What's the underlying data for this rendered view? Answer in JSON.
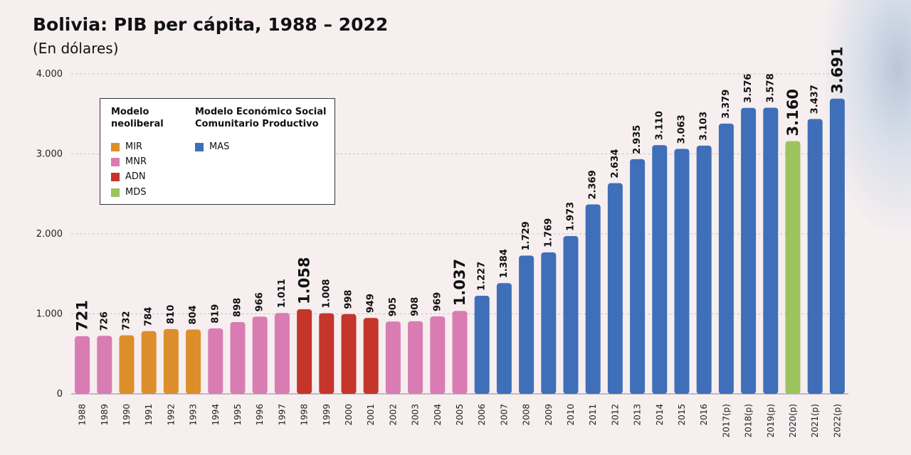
{
  "chart_data": {
    "type": "bar",
    "title": "Bolivia: PIB per cápita, 1988 – 2022",
    "subtitle": "(En dólares)",
    "categories": [
      "1988",
      "1989",
      "1990",
      "1991",
      "1992",
      "1993",
      "1994",
      "1995",
      "1996",
      "1997",
      "1998",
      "1999",
      "2000",
      "2001",
      "2002",
      "2003",
      "2004",
      "2005",
      "2006",
      "2007",
      "2008",
      "2009",
      "2010",
      "2011",
      "2012",
      "2013",
      "2014",
      "2015",
      "2016",
      "2017(p)",
      "2018(p)",
      "2019(p)",
      "2020(p)",
      "2021(p)",
      "2022(p)"
    ],
    "values": [
      721,
      726,
      732,
      784,
      810,
      804,
      819,
      898,
      966,
      1011,
      1058,
      1008,
      998,
      949,
      905,
      908,
      969,
      1037,
      1227,
      1384,
      1729,
      1769,
      1973,
      2369,
      2634,
      2935,
      3110,
      3063,
      3103,
      3379,
      3576,
      3578,
      3160,
      3437,
      3691
    ],
    "value_labels": [
      "721",
      "726",
      "732",
      "784",
      "810",
      "804",
      "819",
      "898",
      "966",
      "1.011",
      "1.058",
      "1.008",
      "998",
      "949",
      "905",
      "908",
      "969",
      "1.037",
      "1.227",
      "1.384",
      "1.729",
      "1.769",
      "1.973",
      "2.369",
      "2.634",
      "2.935",
      "3.110",
      "3.063",
      "3.103",
      "3.379",
      "3.576",
      "3.578",
      "3.160",
      "3.437",
      "3.691"
    ],
    "emphasized_labels": [
      "1988",
      "1998",
      "2005",
      "2020(p)",
      "2022(p)"
    ],
    "bar_groups": [
      "MNR",
      "MNR",
      "MIR",
      "MIR",
      "MIR",
      "MIR",
      "MNR",
      "MNR",
      "MNR",
      "MNR",
      "ADN",
      "ADN",
      "ADN",
      "ADN",
      "MNR",
      "MNR",
      "MNR",
      "MNR",
      "MAS",
      "MAS",
      "MAS",
      "MAS",
      "MAS",
      "MAS",
      "MAS",
      "MAS",
      "MAS",
      "MAS",
      "MAS",
      "MAS",
      "MAS",
      "MAS",
      "MDS",
      "MAS",
      "MAS"
    ],
    "group_colors": {
      "MIR": "#dc8e2a",
      "MNR": "#d97cb3",
      "ADN": "#c5352a",
      "MDS": "#9cc35c",
      "MAS": "#3f6fb8"
    },
    "yticks": [
      {
        "value": 0,
        "label": "0"
      },
      {
        "value": 1000,
        "label": "1.000"
      },
      {
        "value": 2000,
        "label": "2.000"
      },
      {
        "value": 3000,
        "label": "3.000"
      },
      {
        "value": 4000,
        "label": "4.000"
      }
    ],
    "ylim": [
      0,
      4000
    ],
    "xlabel": "",
    "ylabel": "",
    "grid": "horizontal dashed",
    "legend": {
      "placement": "top-left",
      "groups": [
        {
          "heading": "Modelo neoliberal",
          "heading_lines": [
            "Modelo",
            "neoliberal"
          ],
          "items": [
            {
              "name": "MIR",
              "color": "#dc8e2a"
            },
            {
              "name": "MNR",
              "color": "#d97cb3"
            },
            {
              "name": "ADN",
              "color": "#c5352a"
            },
            {
              "name": "MDS",
              "color": "#9cc35c"
            }
          ]
        },
        {
          "heading": "Modelo Económico Social Comunitario Productivo",
          "heading_lines": [
            "Modelo Económico Social",
            "Comunitario Productivo"
          ],
          "items": [
            {
              "name": "MAS",
              "color": "#3f6fb8"
            }
          ]
        }
      ]
    }
  }
}
